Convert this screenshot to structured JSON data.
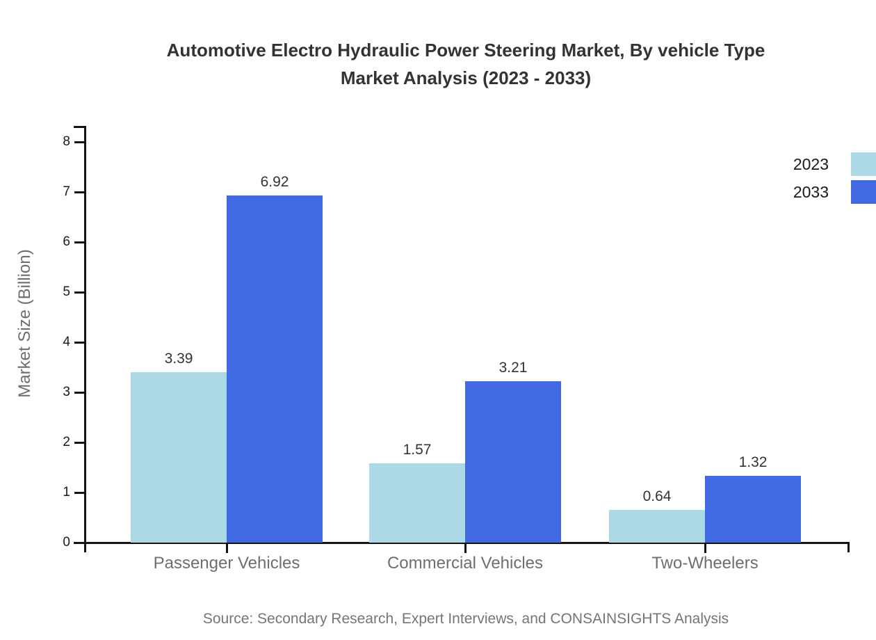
{
  "title": {
    "line1": "Automotive Electro Hydraulic Power Steering Market, By vehicle Type",
    "line2": "Market Analysis (2023 - 2033)"
  },
  "source": "Source: Secondary Research, Expert Interviews, and CONSAINSIGHTS Analysis",
  "colors": {
    "series_2023": "#ADD8E6",
    "series_2033": "#4169E1",
    "axis": "#141414",
    "title_text": "#333333",
    "muted_text": "#6e6e6e",
    "tick_text": "#1a1a1a",
    "value_text": "#333333"
  },
  "chart_data": {
    "type": "bar",
    "title": "Automotive Electro Hydraulic Power Steering Market, By vehicle Type Market Analysis (2023 - 2033)",
    "categories": [
      "Passenger Vehicles",
      "Commercial Vehicles",
      "Two-Wheelers"
    ],
    "series": [
      {
        "name": "2023",
        "color": "#ADD8E6",
        "values": [
          3.39,
          1.57,
          0.64
        ]
      },
      {
        "name": "2033",
        "color": "#4169E1",
        "values": [
          6.92,
          3.21,
          1.32
        ]
      }
    ],
    "xlabel": "",
    "ylabel": "Market Size (Billion)",
    "ylim": [
      0,
      8
    ],
    "yticks": [
      0,
      1,
      2,
      3,
      4,
      5,
      6,
      7,
      8
    ],
    "grid": false,
    "legend_position": "right",
    "value_labels": true
  }
}
